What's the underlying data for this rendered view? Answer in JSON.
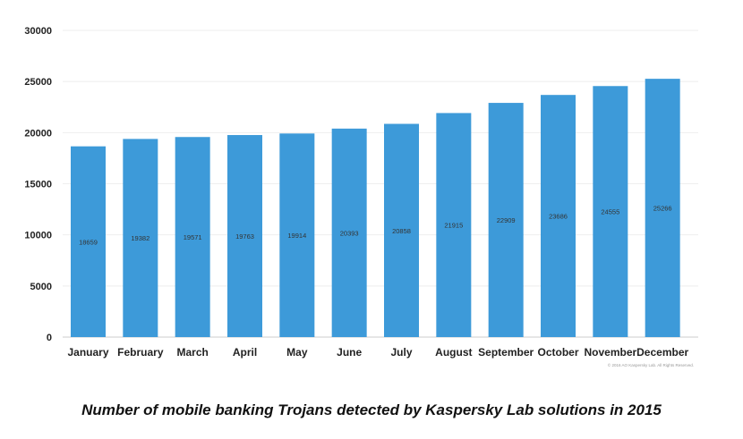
{
  "chart_data": {
    "type": "bar",
    "title": "Number of mobile banking Trojans detected by Kaspersky Lab solutions in 2015",
    "categories": [
      "January",
      "February",
      "March",
      "April",
      "May",
      "June",
      "July",
      "August",
      "September",
      "October",
      "November",
      "December"
    ],
    "values": [
      18659,
      19382,
      19571,
      19763,
      19914,
      20393,
      20858,
      21915,
      22909,
      23686,
      24555,
      25266
    ],
    "ylim": [
      0,
      30000
    ],
    "yticks": [
      0,
      5000,
      10000,
      15000,
      20000,
      25000,
      30000
    ],
    "xlabel": "",
    "ylabel": "",
    "grid": true,
    "bar_color": "#3d9ad9",
    "copyright": "© 2016 AO Kaspersky Lab. All Rights Reserved."
  }
}
